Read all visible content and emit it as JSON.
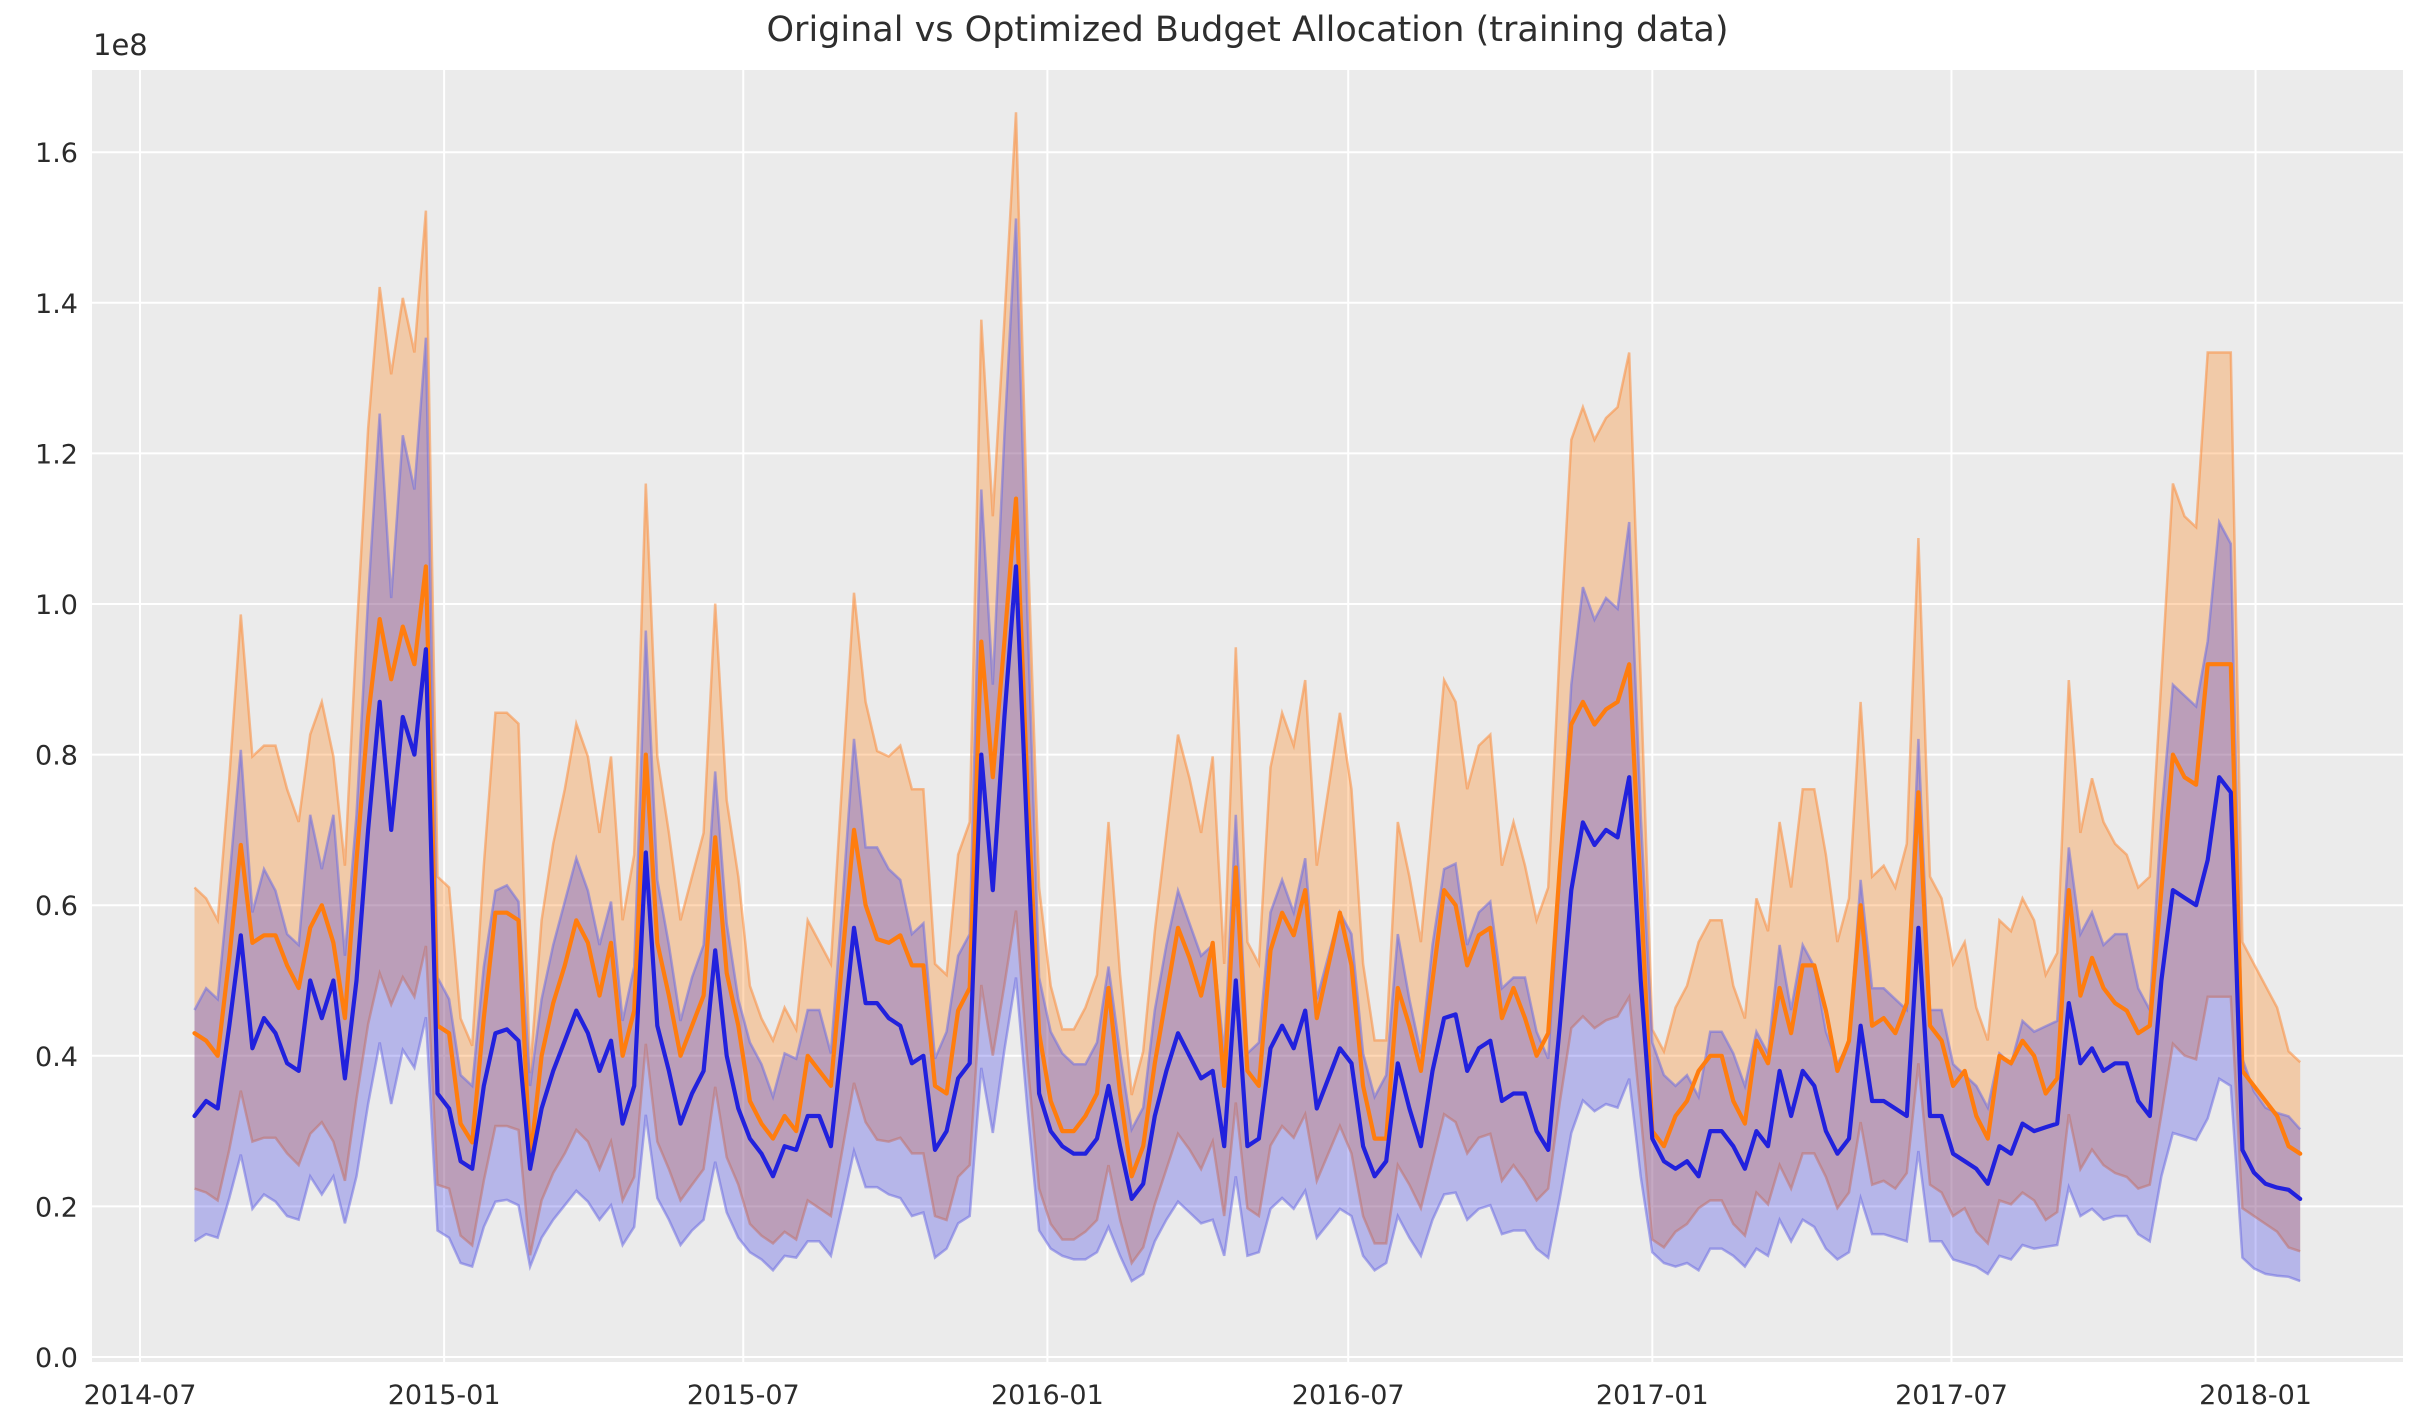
{
  "figure": {
    "title": "Original vs Optimized Budget Allocation (training data)",
    "offset_label": "1e8",
    "background_color": "#ffffff",
    "plot_background_color": "#ebebeb",
    "grid_color": "#ffffff",
    "text_color": "#2b2b2b"
  },
  "chart_data": {
    "type": "line",
    "title": "Original vs Optimized Budget Allocation (training data)",
    "xlabel": "",
    "ylabel": "",
    "y_unit": "1e8",
    "ylim_1e8": [
      0.0,
      1.71
    ],
    "grid": true,
    "legend_position": "none",
    "x_axis": {
      "tick_labels": [
        "2014-07",
        "2015-01",
        "2015-07",
        "2016-01",
        "2016-07",
        "2017-01",
        "2017-07",
        "2018-01"
      ]
    },
    "y_axis": {
      "tick_labels": [
        "0.0",
        "0.2",
        "0.4",
        "0.6",
        "0.8",
        "1.0",
        "1.2",
        "1.4",
        "1.6"
      ],
      "tick_values_1e8": [
        0.0,
        0.2,
        0.4,
        0.6,
        0.8,
        1.0,
        1.2,
        1.4,
        1.6
      ],
      "scale_label": "1e8"
    },
    "frequency": "weekly",
    "start_date": "2014-08-03",
    "end_date": "2018-01-28",
    "band_note": "each line has a shaded confidence band; upper/lower bounds estimated as factors of the line value",
    "series": [
      {
        "name": "series_orange",
        "line_color": "#ff7d0e",
        "fill_color": "rgba(255,127,14,0.30)",
        "edge_color": "rgba(250,140,60,0.55)",
        "band_lo_factor": 0.52,
        "band_hi_factor": 1.45,
        "values_1e8": [
          0.43,
          0.42,
          0.4,
          0.53,
          0.68,
          0.55,
          0.56,
          0.56,
          0.52,
          0.49,
          0.57,
          0.6,
          0.55,
          0.45,
          0.66,
          0.85,
          0.98,
          0.9,
          0.97,
          0.92,
          1.05,
          0.44,
          0.43,
          0.31,
          0.285,
          0.45,
          0.59,
          0.59,
          0.58,
          0.26,
          0.4,
          0.47,
          0.52,
          0.58,
          0.55,
          0.48,
          0.55,
          0.4,
          0.46,
          0.8,
          0.55,
          0.48,
          0.4,
          0.44,
          0.48,
          0.69,
          0.51,
          0.44,
          0.34,
          0.31,
          0.29,
          0.32,
          0.3,
          0.4,
          0.38,
          0.36,
          0.53,
          0.7,
          0.6,
          0.555,
          0.55,
          0.56,
          0.52,
          0.52,
          0.36,
          0.35,
          0.46,
          0.49,
          0.95,
          0.77,
          0.95,
          1.14,
          0.75,
          0.43,
          0.34,
          0.3,
          0.3,
          0.32,
          0.35,
          0.49,
          0.35,
          0.24,
          0.28,
          0.39,
          0.48,
          0.57,
          0.53,
          0.48,
          0.55,
          0.36,
          0.65,
          0.38,
          0.36,
          0.54,
          0.59,
          0.56,
          0.62,
          0.45,
          0.52,
          0.59,
          0.52,
          0.36,
          0.29,
          0.29,
          0.49,
          0.44,
          0.38,
          0.5,
          0.62,
          0.6,
          0.52,
          0.56,
          0.57,
          0.45,
          0.49,
          0.45,
          0.4,
          0.43,
          0.65,
          0.84,
          0.87,
          0.84,
          0.86,
          0.87,
          0.92,
          0.62,
          0.3,
          0.28,
          0.32,
          0.34,
          0.38,
          0.4,
          0.4,
          0.34,
          0.31,
          0.42,
          0.39,
          0.49,
          0.43,
          0.52,
          0.52,
          0.46,
          0.38,
          0.42,
          0.6,
          0.44,
          0.45,
          0.43,
          0.47,
          0.75,
          0.44,
          0.42,
          0.36,
          0.38,
          0.32,
          0.29,
          0.4,
          0.39,
          0.42,
          0.4,
          0.35,
          0.37,
          0.62,
          0.48,
          0.53,
          0.49,
          0.47,
          0.46,
          0.43,
          0.44,
          0.62,
          0.8,
          0.77,
          0.76,
          0.92,
          0.92,
          0.92,
          0.38,
          0.36,
          0.34,
          0.32,
          0.28,
          0.27
        ]
      },
      {
        "name": "series_blue",
        "line_color": "#2121dd",
        "fill_color": "rgba(45,45,230,0.28)",
        "edge_color": "rgba(110,110,225,0.55)",
        "band_lo_factor": 0.48,
        "band_hi_factor": 1.44,
        "values_1e8": [
          0.32,
          0.34,
          0.33,
          0.44,
          0.56,
          0.41,
          0.45,
          0.43,
          0.39,
          0.38,
          0.5,
          0.45,
          0.5,
          0.37,
          0.5,
          0.7,
          0.87,
          0.7,
          0.85,
          0.8,
          0.94,
          0.35,
          0.33,
          0.26,
          0.25,
          0.36,
          0.43,
          0.435,
          0.42,
          0.25,
          0.33,
          0.38,
          0.42,
          0.46,
          0.43,
          0.38,
          0.42,
          0.31,
          0.36,
          0.67,
          0.44,
          0.38,
          0.31,
          0.35,
          0.38,
          0.54,
          0.4,
          0.33,
          0.29,
          0.27,
          0.24,
          0.28,
          0.275,
          0.32,
          0.32,
          0.28,
          0.42,
          0.57,
          0.47,
          0.47,
          0.45,
          0.44,
          0.39,
          0.4,
          0.275,
          0.3,
          0.37,
          0.39,
          0.8,
          0.62,
          0.85,
          1.05,
          0.68,
          0.35,
          0.3,
          0.28,
          0.27,
          0.27,
          0.29,
          0.36,
          0.28,
          0.21,
          0.23,
          0.32,
          0.38,
          0.43,
          0.4,
          0.37,
          0.38,
          0.28,
          0.5,
          0.28,
          0.29,
          0.41,
          0.44,
          0.41,
          0.46,
          0.33,
          0.37,
          0.41,
          0.39,
          0.28,
          0.24,
          0.26,
          0.39,
          0.33,
          0.28,
          0.38,
          0.45,
          0.455,
          0.38,
          0.41,
          0.42,
          0.34,
          0.35,
          0.35,
          0.3,
          0.275,
          0.44,
          0.62,
          0.71,
          0.68,
          0.7,
          0.69,
          0.77,
          0.5,
          0.29,
          0.26,
          0.25,
          0.26,
          0.24,
          0.3,
          0.3,
          0.28,
          0.25,
          0.3,
          0.28,
          0.38,
          0.32,
          0.38,
          0.36,
          0.3,
          0.27,
          0.29,
          0.44,
          0.34,
          0.34,
          0.33,
          0.32,
          0.57,
          0.32,
          0.32,
          0.27,
          0.26,
          0.25,
          0.23,
          0.28,
          0.27,
          0.31,
          0.3,
          0.305,
          0.31,
          0.47,
          0.39,
          0.41,
          0.38,
          0.39,
          0.39,
          0.34,
          0.32,
          0.5,
          0.62,
          0.61,
          0.6,
          0.66,
          0.77,
          0.75,
          0.275,
          0.245,
          0.23,
          0.225,
          0.222,
          0.21
        ]
      }
    ]
  }
}
